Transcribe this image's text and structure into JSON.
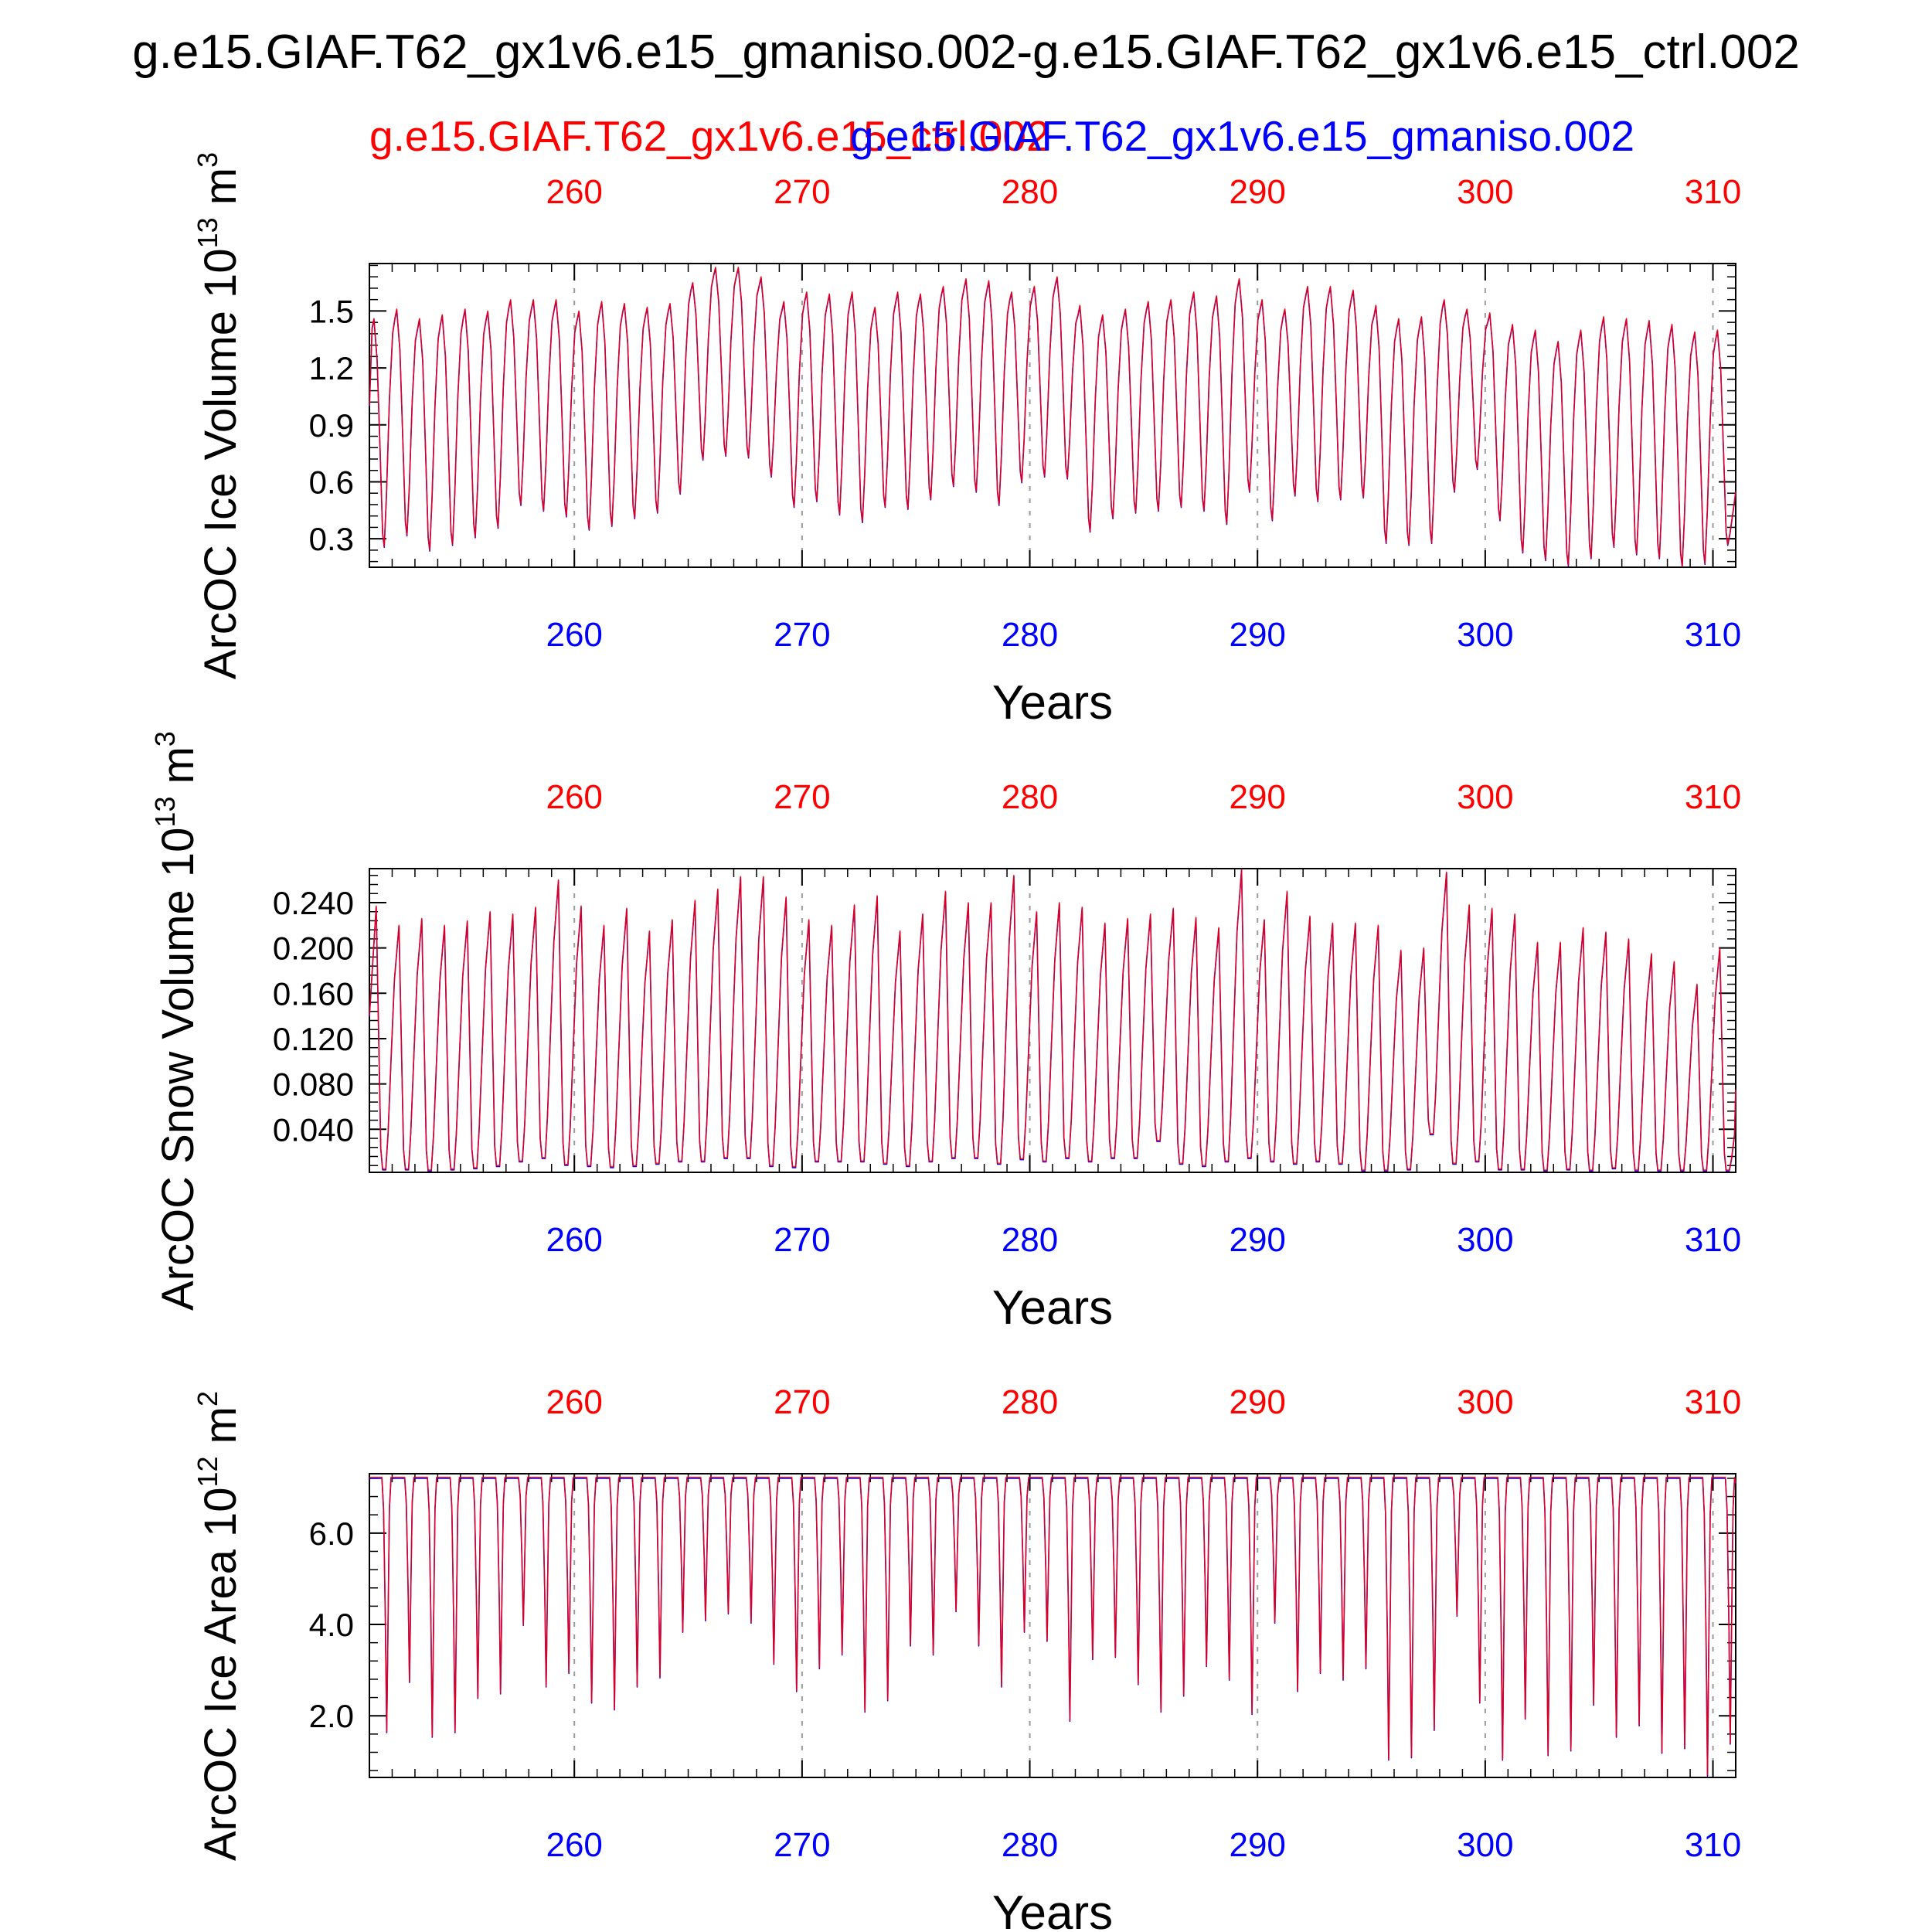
{
  "figure": {
    "title": "g.e15.GIAF.T62_gx1v6.e15_gmaniso.002-g.e15.GIAF.T62_gx1v6.e15_ctrl.002",
    "legend_ctrl": "g.e15.GIAF.T62_gx1v6.e15_ctrl.002",
    "legend_gmaniso": "g.e15.GIAF.T62_gx1v6.e15_gmaniso.002",
    "colors": {
      "ctrl": "#ff0000",
      "gmaniso": "#0000ff",
      "line": "#c8004a",
      "axis": "#000000",
      "grid": "#9a9a9a"
    }
  },
  "chart_data": [
    {
      "type": "line",
      "name": "ice-volume",
      "title": "",
      "xlabel": "Years",
      "ylabel_main": "ArcOC Ice Volume 10",
      "ylabel_exp": "13",
      "ylabel_unit": "m",
      "ylabel_unit_exp": "3",
      "xlim": [
        251,
        311
      ],
      "ylim": [
        0.15,
        1.75
      ],
      "x_ticks": [
        260,
        270,
        280,
        290,
        300,
        310
      ],
      "x_tick_labels": [
        "260",
        "270",
        "280",
        "290",
        "300",
        "310"
      ],
      "y_ticks": [
        0.3,
        0.6,
        0.9,
        1.2,
        1.5
      ],
      "y_tick_labels": [
        "0.3",
        "0.6",
        "0.9",
        "1.2",
        "1.5"
      ],
      "shape": "volume",
      "start_value": 1.0,
      "maxima": [
        1.46,
        1.51,
        1.46,
        1.48,
        1.51,
        1.5,
        1.56,
        1.56,
        1.56,
        1.5,
        1.55,
        1.54,
        1.52,
        1.54,
        1.65,
        1.73,
        1.73,
        1.68,
        1.55,
        1.6,
        1.59,
        1.6,
        1.52,
        1.6,
        1.59,
        1.63,
        1.67,
        1.66,
        1.6,
        1.63,
        1.68,
        1.53,
        1.48,
        1.51,
        1.55,
        1.56,
        1.6,
        1.58,
        1.67,
        1.56,
        1.51,
        1.63,
        1.63,
        1.61,
        1.53,
        1.46,
        1.47,
        1.56,
        1.51,
        1.49,
        1.43,
        1.4,
        1.34,
        1.4,
        1.47,
        1.46,
        1.45,
        1.43,
        1.39,
        1.4
      ],
      "minima": [
        0.26,
        0.32,
        0.24,
        0.27,
        0.31,
        0.36,
        0.48,
        0.45,
        0.42,
        0.35,
        0.37,
        0.41,
        0.44,
        0.54,
        0.72,
        0.74,
        0.73,
        0.63,
        0.47,
        0.5,
        0.43,
        0.39,
        0.47,
        0.46,
        0.51,
        0.58,
        0.55,
        0.48,
        0.6,
        0.63,
        0.62,
        0.34,
        0.41,
        0.44,
        0.45,
        0.47,
        0.45,
        0.38,
        0.55,
        0.4,
        0.53,
        0.5,
        0.51,
        0.52,
        0.28,
        0.27,
        0.28,
        0.55,
        0.67,
        0.4,
        0.23,
        0.19,
        0.16,
        0.2,
        0.26,
        0.22,
        0.2,
        0.15,
        0.17,
        0.27
      ],
      "end_value": 0.55,
      "series": [
        {
          "name": "g.e15.GIAF.T62_gx1v6.e15_ctrl.002",
          "color": "#ff0000"
        },
        {
          "name": "g.e15.GIAF.T62_gx1v6.e15_gmaniso.002",
          "color": "#0000ff"
        }
      ]
    },
    {
      "type": "line",
      "name": "snow-volume",
      "title": "",
      "xlabel": "Years",
      "ylabel_main": "ArcOC Snow Volume 10",
      "ylabel_exp": "13",
      "ylabel_unit": "m",
      "ylabel_unit_exp": "3",
      "xlim": [
        251,
        311
      ],
      "ylim": [
        0.002,
        0.27
      ],
      "x_ticks": [
        260,
        270,
        280,
        290,
        300,
        310
      ],
      "x_tick_labels": [
        "260",
        "270",
        "280",
        "290",
        "300",
        "310"
      ],
      "y_ticks": [
        0.04,
        0.08,
        0.12,
        0.16,
        0.2,
        0.24
      ],
      "y_tick_labels": [
        "0.040",
        "0.080",
        "0.120",
        "0.160",
        "0.200",
        "0.240"
      ],
      "shape": "snow",
      "start_value": 0.14,
      "maxima": [
        0.237,
        0.22,
        0.226,
        0.22,
        0.224,
        0.232,
        0.23,
        0.236,
        0.26,
        0.237,
        0.22,
        0.235,
        0.215,
        0.225,
        0.242,
        0.252,
        0.263,
        0.263,
        0.245,
        0.225,
        0.22,
        0.238,
        0.246,
        0.215,
        0.23,
        0.25,
        0.24,
        0.24,
        0.264,
        0.232,
        0.24,
        0.236,
        0.222,
        0.226,
        0.23,
        0.235,
        0.227,
        0.218,
        0.272,
        0.225,
        0.25,
        0.228,
        0.222,
        0.222,
        0.22,
        0.198,
        0.2,
        0.267,
        0.238,
        0.235,
        0.23,
        0.205,
        0.205,
        0.218,
        0.214,
        0.208,
        0.195,
        0.188,
        0.168,
        0.2
      ],
      "minima": [
        0.005,
        0.005,
        0.004,
        0.005,
        0.006,
        0.008,
        0.012,
        0.015,
        0.009,
        0.008,
        0.007,
        0.008,
        0.01,
        0.012,
        0.012,
        0.015,
        0.015,
        0.008,
        0.007,
        0.012,
        0.012,
        0.012,
        0.01,
        0.008,
        0.012,
        0.015,
        0.015,
        0.01,
        0.014,
        0.012,
        0.015,
        0.012,
        0.015,
        0.015,
        0.03,
        0.01,
        0.008,
        0.012,
        0.015,
        0.012,
        0.01,
        0.012,
        0.01,
        0.004,
        0.004,
        0.005,
        0.036,
        0.01,
        0.012,
        0.005,
        0.005,
        0.004,
        0.005,
        0.004,
        0.006,
        0.004,
        0.004,
        0.004,
        0.004,
        0.004
      ],
      "end_value": 0.075,
      "series": [
        {
          "name": "g.e15.GIAF.T62_gx1v6.e15_ctrl.002",
          "color": "#ff0000"
        },
        {
          "name": "g.e15.GIAF.T62_gx1v6.e15_gmaniso.002",
          "color": "#0000ff"
        }
      ]
    },
    {
      "type": "line",
      "name": "ice-area",
      "title": "",
      "xlabel": "Years",
      "ylabel_main": "ArcOC Ice Area 10",
      "ylabel_exp": "12",
      "ylabel_unit": "m",
      "ylabel_unit_exp": "2",
      "xlim": [
        251,
        311
      ],
      "ylim": [
        0.65,
        7.3
      ],
      "x_ticks": [
        260,
        270,
        280,
        290,
        300,
        310
      ],
      "x_tick_labels": [
        "260",
        "270",
        "280",
        "290",
        "300",
        "310"
      ],
      "y_ticks": [
        2.0,
        4.0,
        6.0
      ],
      "y_tick_labels": [
        "2.0",
        "4.0",
        "6.0"
      ],
      "shape": "area",
      "start_value": 7.2,
      "maxima": [
        7.22,
        7.22,
        7.22,
        7.22,
        7.22,
        7.22,
        7.22,
        7.22,
        7.22,
        7.22,
        7.22,
        7.22,
        7.22,
        7.22,
        7.22,
        7.22,
        7.22,
        7.22,
        7.22,
        7.22,
        7.22,
        7.22,
        7.22,
        7.22,
        7.22,
        7.22,
        7.22,
        7.22,
        7.22,
        7.22,
        7.22,
        7.22,
        7.22,
        7.22,
        7.22,
        7.22,
        7.22,
        7.22,
        7.22,
        7.22,
        7.22,
        7.22,
        7.22,
        7.22,
        7.22,
        7.22,
        7.22,
        7.22,
        7.22,
        7.22,
        7.22,
        7.22,
        7.22,
        7.22,
        7.22,
        7.22,
        7.22,
        7.22,
        7.22,
        7.22
      ],
      "minima": [
        1.65,
        2.75,
        1.55,
        1.65,
        2.4,
        2.5,
        4.0,
        2.65,
        2.95,
        2.3,
        2.15,
        2.65,
        2.85,
        3.85,
        4.1,
        4.25,
        4.05,
        3.15,
        2.55,
        3.05,
        3.35,
        2.1,
        2.35,
        3.55,
        3.35,
        4.3,
        3.55,
        2.65,
        3.85,
        3.65,
        1.9,
        3.25,
        3.3,
        2.7,
        2.1,
        2.45,
        3.1,
        2.8,
        2.05,
        4.05,
        2.55,
        2.95,
        2.8,
        3.05,
        1.05,
        1.1,
        1.7,
        4.2,
        2.3,
        1.05,
        1.95,
        1.15,
        1.25,
        2.25,
        1.55,
        1.8,
        1.2,
        1.3,
        0.7,
        1.4
      ],
      "end_value": 7.1,
      "series": [
        {
          "name": "g.e15.GIAF.T62_gx1v6.e15_ctrl.002",
          "color": "#ff0000"
        },
        {
          "name": "g.e15.GIAF.T62_gx1v6.e15_gmaniso.002",
          "color": "#0000ff"
        }
      ]
    }
  ]
}
